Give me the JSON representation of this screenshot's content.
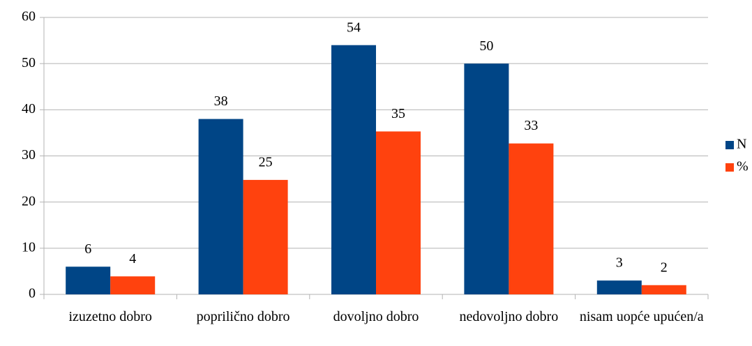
{
  "chart_data": {
    "type": "bar",
    "categories": [
      "izuzetno dobro",
      "poprilično dobro",
      "dovoljno dobro",
      "nedovoljno dobro",
      "nisam uopće upućen/a"
    ],
    "series": [
      {
        "name": "N",
        "color": "#004586",
        "values": [
          6,
          38,
          54,
          50,
          3
        ]
      },
      {
        "name": "%",
        "color": "#ff420e",
        "values": [
          3.9,
          24.8,
          35.3,
          32.7,
          2.0
        ],
        "value_labels": [
          "4",
          "25",
          "35",
          "33",
          "2"
        ]
      }
    ],
    "ylim": [
      0,
      60
    ],
    "yticks": [
      0,
      10,
      20,
      30,
      40,
      50,
      60
    ],
    "grid": true,
    "legend": "right"
  }
}
